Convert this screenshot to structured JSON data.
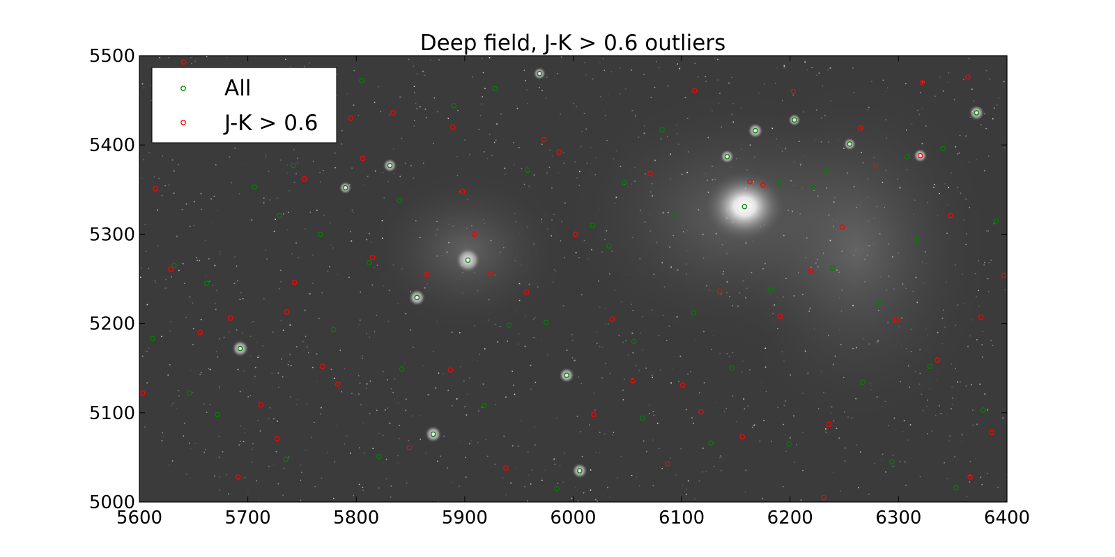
{
  "chart_data": {
    "type": "scatter",
    "title": "Deep field, J-K > 0.6 outliers",
    "xlabel": "",
    "ylabel": "",
    "xlim": [
      5600,
      6400
    ],
    "ylim": [
      5000,
      5500
    ],
    "x_ticks": [
      "5600",
      "5700",
      "5800",
      "5900",
      "6000",
      "6100",
      "6200",
      "6300",
      "6400"
    ],
    "y_ticks": [
      "5000",
      "5100",
      "5200",
      "5300",
      "5400",
      "5500"
    ],
    "legend_position": "upper-left",
    "background": "greyscale astronomical image",
    "series": [
      {
        "name": "All",
        "color": "#008000",
        "marker": "open-circle",
        "points": [
          [
            5612,
            5183
          ],
          [
            5625,
            5448
          ],
          [
            5632,
            5265
          ],
          [
            5646,
            5122
          ],
          [
            5672,
            5098
          ],
          [
            5693,
            5172
          ],
          [
            5706,
            5353
          ],
          [
            5729,
            5321
          ],
          [
            5735,
            5048
          ],
          [
            5742,
            5377
          ],
          [
            5758,
            5447
          ],
          [
            5779,
            5193
          ],
          [
            5790,
            5352
          ],
          [
            5805,
            5472
          ],
          [
            5812,
            5268
          ],
          [
            5821,
            5051
          ],
          [
            5831,
            5377
          ],
          [
            5840,
            5338
          ],
          [
            5856,
            5229
          ],
          [
            5871,
            5076
          ],
          [
            5890,
            5444
          ],
          [
            5903,
            5271
          ],
          [
            5928,
            5463
          ],
          [
            5941,
            5198
          ],
          [
            5958,
            5372
          ],
          [
            5969,
            5480
          ],
          [
            5975,
            5201
          ],
          [
            5985,
            5015
          ],
          [
            5994,
            5142
          ],
          [
            6006,
            5035
          ],
          [
            6018,
            5310
          ],
          [
            6033,
            5287
          ],
          [
            6047,
            5358
          ],
          [
            6064,
            5094
          ],
          [
            6082,
            5417
          ],
          [
            6093,
            5321
          ],
          [
            6111,
            5212
          ],
          [
            6127,
            5066
          ],
          [
            6142,
            5387
          ],
          [
            6158,
            5331
          ],
          [
            6168,
            5416
          ],
          [
            6182,
            5238
          ],
          [
            6190,
            5358
          ],
          [
            6199,
            5065
          ],
          [
            6204,
            5428
          ],
          [
            6221,
            5352
          ],
          [
            6233,
            5371
          ],
          [
            6255,
            5401
          ],
          [
            6267,
            5134
          ],
          [
            6281,
            5224
          ],
          [
            6294,
            5045
          ],
          [
            6317,
            5293
          ],
          [
            6329,
            5152
          ],
          [
            6341,
            5396
          ],
          [
            6353,
            5016
          ],
          [
            6372,
            5436
          ],
          [
            6378,
            5103
          ],
          [
            6390,
            5315
          ],
          [
            5662,
            5245
          ],
          [
            5718,
            5410
          ],
          [
            5767,
            5300
          ],
          [
            5842,
            5149
          ],
          [
            5918,
            5108
          ],
          [
            6056,
            5180
          ],
          [
            6146,
            5150
          ],
          [
            6239,
            5262
          ],
          [
            6308,
            5387
          ]
        ]
      },
      {
        "name": "J-K > 0.6",
        "color": "#ff0000",
        "marker": "open-circle",
        "points": [
          [
            5603,
            5122
          ],
          [
            5615,
            5351
          ],
          [
            5629,
            5261
          ],
          [
            5641,
            5493
          ],
          [
            5656,
            5190
          ],
          [
            5668,
            5410
          ],
          [
            5684,
            5206
          ],
          [
            5691,
            5028
          ],
          [
            5712,
            5109
          ],
          [
            5727,
            5071
          ],
          [
            5743,
            5246
          ],
          [
            5752,
            5362
          ],
          [
            5769,
            5152
          ],
          [
            5783,
            5132
          ],
          [
            5795,
            5430
          ],
          [
            5815,
            5274
          ],
          [
            5834,
            5436
          ],
          [
            5849,
            5061
          ],
          [
            5865,
            5255
          ],
          [
            5887,
            5148
          ],
          [
            5898,
            5348
          ],
          [
            5909,
            5300
          ],
          [
            5924,
            5256
          ],
          [
            5938,
            5038
          ],
          [
            5957,
            5235
          ],
          [
            5973,
            5406
          ],
          [
            5987,
            5392
          ],
          [
            6002,
            5300
          ],
          [
            6019,
            5098
          ],
          [
            6036,
            5205
          ],
          [
            6055,
            5136
          ],
          [
            6071,
            5368
          ],
          [
            6087,
            5043
          ],
          [
            6101,
            5131
          ],
          [
            6118,
            5101
          ],
          [
            6135,
            5236
          ],
          [
            6156,
            5073
          ],
          [
            6163,
            5359
          ],
          [
            6175,
            5355
          ],
          [
            6191,
            5208
          ],
          [
            6203,
            5460
          ],
          [
            6219,
            5259
          ],
          [
            6236,
            5087
          ],
          [
            6248,
            5308
          ],
          [
            6265,
            5419
          ],
          [
            6279,
            5377
          ],
          [
            6298,
            5204
          ],
          [
            6320,
            5388
          ],
          [
            6322,
            5470
          ],
          [
            6336,
            5159
          ],
          [
            6348,
            5321
          ],
          [
            6364,
            5476
          ],
          [
            6376,
            5207
          ],
          [
            6386,
            5078
          ],
          [
            6397,
            5254
          ],
          [
            5620,
            5470
          ],
          [
            5736,
            5213
          ],
          [
            5806,
            5385
          ],
          [
            5889,
            5420
          ],
          [
            6112,
            5461
          ],
          [
            6231,
            5005
          ],
          [
            6366,
            5028
          ]
        ]
      }
    ]
  }
}
